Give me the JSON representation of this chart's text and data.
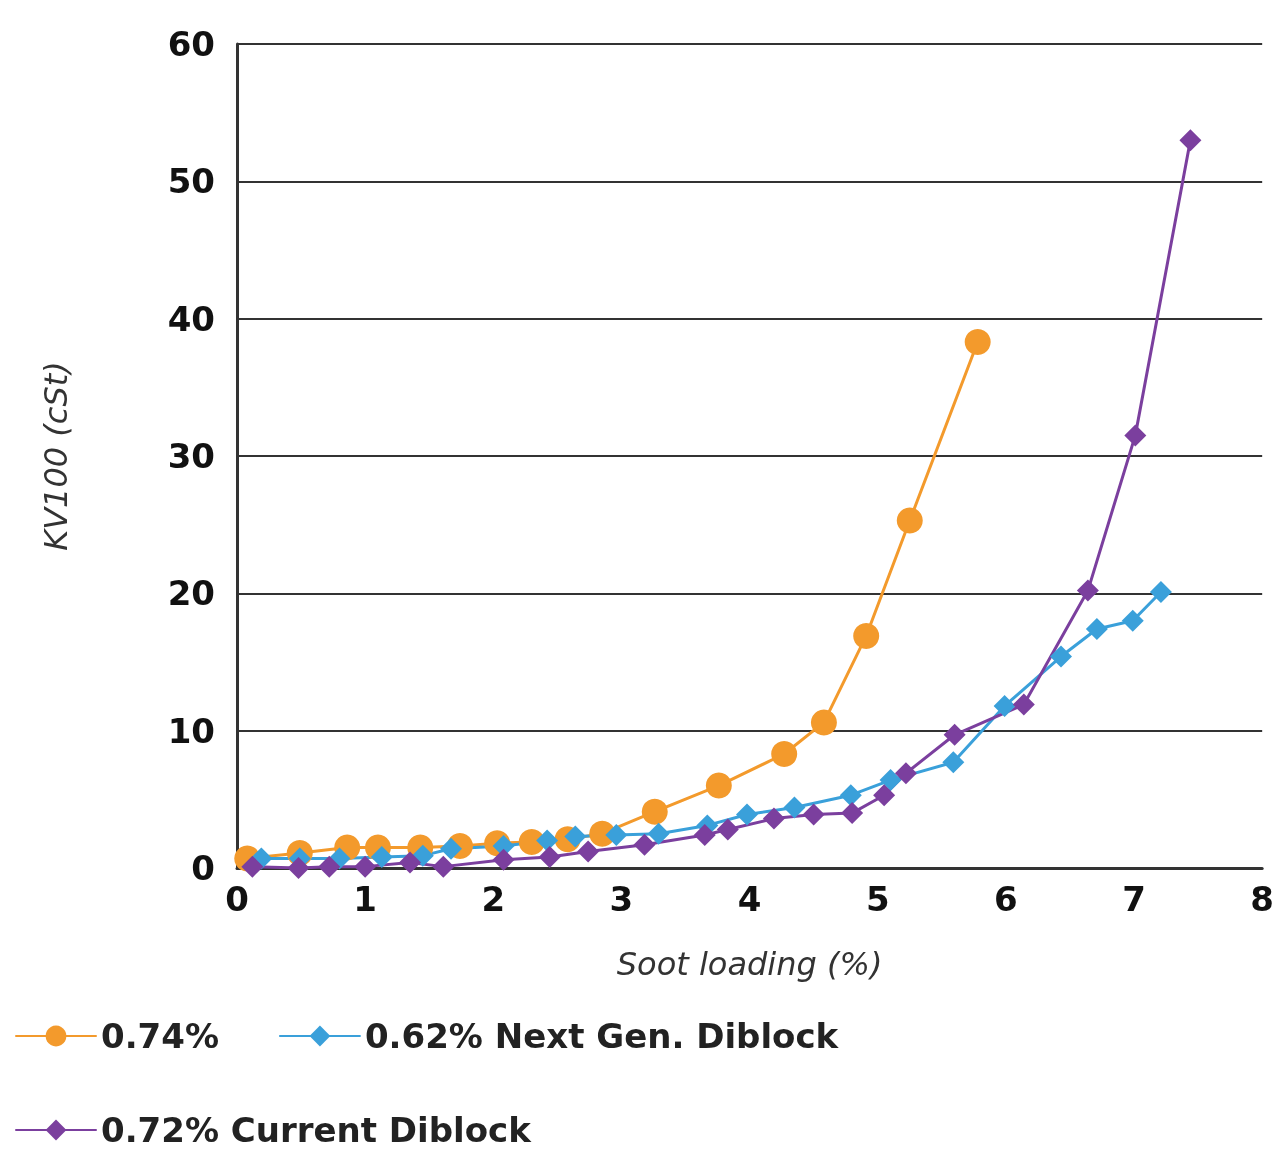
{
  "chart_data": {
    "type": "line",
    "xlabel": "Soot loading (%)",
    "ylabel": "KV100 (cSt)",
    "xlim": [
      0,
      8
    ],
    "xticks": [
      0,
      1,
      2,
      3,
      4,
      5,
      6,
      7,
      8
    ],
    "ylim": [
      0,
      60
    ],
    "yticks": [
      0,
      10,
      20,
      30,
      40,
      50,
      60
    ],
    "grid": "y",
    "legend": "bottom",
    "series": [
      {
        "name": "0.74%",
        "color": "#f39a2c",
        "marker": "circle",
        "x": [
          0.08,
          0.49,
          0.86,
          1.1,
          1.43,
          1.74,
          2.03,
          2.3,
          2.58,
          2.85,
          3.26,
          3.76,
          4.27,
          4.58,
          4.91,
          5.25,
          5.78
        ],
        "values": [
          0.7,
          1.1,
          1.5,
          1.5,
          1.5,
          1.6,
          1.8,
          1.9,
          2.1,
          2.5,
          4.1,
          6.0,
          8.3,
          10.6,
          16.9,
          25.3,
          38.3
        ]
      },
      {
        "name": "0.62% Next Gen. Diblock",
        "color": "#3aa0da",
        "marker": "diamond",
        "x": [
          0.19,
          0.49,
          0.8,
          1.13,
          1.45,
          1.67,
          2.08,
          2.42,
          2.64,
          2.96,
          3.29,
          3.67,
          3.98,
          4.35,
          4.79,
          5.1,
          5.59,
          5.99,
          6.43,
          6.71,
          6.99,
          7.21
        ],
        "values": [
          0.7,
          0.7,
          0.7,
          0.8,
          0.9,
          1.4,
          1.6,
          2.0,
          2.3,
          2.4,
          2.5,
          3.1,
          3.9,
          4.4,
          5.3,
          6.4,
          7.7,
          11.8,
          15.4,
          17.4,
          18.0,
          20.1
        ]
      },
      {
        "name": "0.72% Current Diblock",
        "color": "#7b3f9e",
        "marker": "diamond",
        "x": [
          0.12,
          0.48,
          0.72,
          1.0,
          1.35,
          1.61,
          2.08,
          2.44,
          2.74,
          3.18,
          3.65,
          3.83,
          4.19,
          4.5,
          4.8,
          5.05,
          5.22,
          5.6,
          6.14,
          6.64,
          7.01,
          7.44
        ],
        "values": [
          0.1,
          0.0,
          0.1,
          0.1,
          0.4,
          0.1,
          0.6,
          0.8,
          1.2,
          1.7,
          2.4,
          2.8,
          3.6,
          3.9,
          4.0,
          5.3,
          6.9,
          9.7,
          11.9,
          20.2,
          31.5,
          53.0
        ]
      }
    ]
  }
}
